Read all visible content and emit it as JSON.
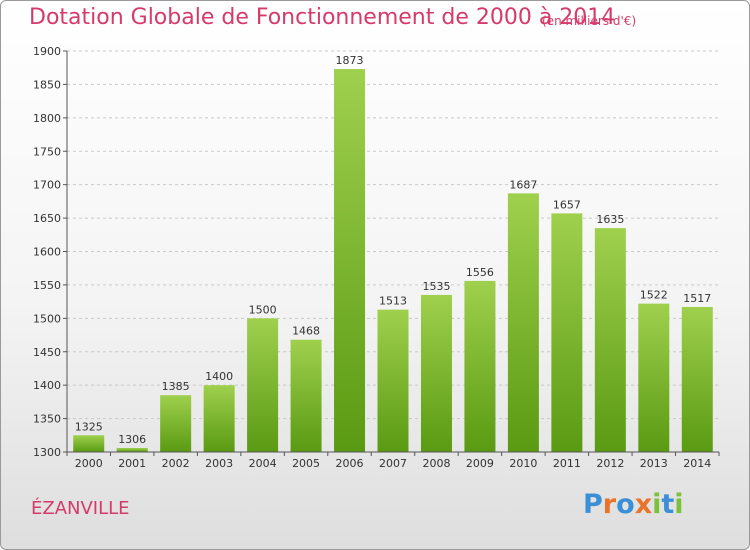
{
  "title": "Dotation Globale de Fonctionnement de 2000 à 2014",
  "subtitle": "(en milliers d'€)",
  "commune": "ÉZANVILLE",
  "logo": {
    "text": "Proxiti",
    "letters": [
      "P",
      "r",
      "o",
      "x",
      "i",
      "t",
      "i"
    ],
    "colors": [
      "#3a8fd6",
      "#e8732a",
      "#3a8fd6",
      "#e8732a",
      "#7cc13a",
      "#3a8fd6",
      "#7cc13a"
    ]
  },
  "colors": {
    "title": "#d63a6b",
    "bar_top": "#9fd04e",
    "bar_bottom": "#5a9a12",
    "grid": "#c9c9c9"
  },
  "chart_data": {
    "type": "bar",
    "categories": [
      "2000",
      "2001",
      "2002",
      "2003",
      "2004",
      "2005",
      "2006",
      "2007",
      "2008",
      "2009",
      "2010",
      "2011",
      "2012",
      "2013",
      "2014"
    ],
    "values": [
      1325,
      1306,
      1385,
      1400,
      1500,
      1468,
      1873,
      1513,
      1535,
      1556,
      1687,
      1657,
      1635,
      1522,
      1517
    ],
    "ylim": [
      1300,
      1900
    ],
    "yticks": [
      1300,
      1350,
      1400,
      1450,
      1500,
      1550,
      1600,
      1650,
      1700,
      1750,
      1800,
      1850,
      1900
    ],
    "grid": true,
    "title": "Dotation Globale de Fonctionnement de 2000 à 2014",
    "xlabel": "",
    "ylabel": ""
  }
}
